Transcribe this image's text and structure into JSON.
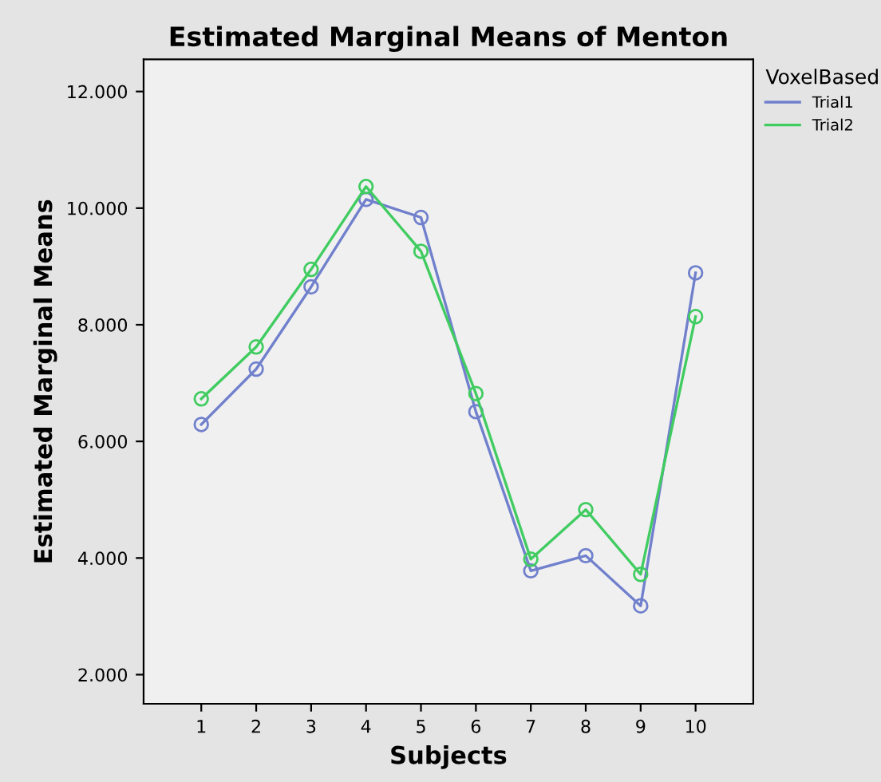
{
  "chart_data": {
    "type": "line",
    "title": "Estimated Marginal Means of Menton",
    "xlabel": "Subjects",
    "ylabel": "Estimated Marginal Means",
    "legend_title": "VoxelBased",
    "categories": [
      "1",
      "2",
      "3",
      "4",
      "5",
      "6",
      "7",
      "8",
      "9",
      "10"
    ],
    "series": [
      {
        "name": "Trial1",
        "color": "#7080cc",
        "values": [
          6.29,
          7.24,
          8.65,
          10.15,
          9.84,
          6.51,
          3.78,
          4.04,
          3.18,
          8.89
        ]
      },
      {
        "name": "Trial2",
        "color": "#40cc60",
        "values": [
          6.73,
          7.62,
          8.95,
          10.37,
          9.26,
          6.82,
          3.98,
          4.83,
          3.72,
          8.14
        ]
      }
    ],
    "ylim": [
      1.5,
      12.55
    ],
    "yticks": [
      {
        "value": 2,
        "label": "2.000"
      },
      {
        "value": 4,
        "label": "4.000"
      },
      {
        "value": 6,
        "label": "6.000"
      },
      {
        "value": 8,
        "label": "8.000"
      },
      {
        "value": 10,
        "label": "10.000"
      },
      {
        "value": 12,
        "label": "12.000"
      }
    ],
    "marker": "circle",
    "legend": "top right",
    "grid": false
  }
}
